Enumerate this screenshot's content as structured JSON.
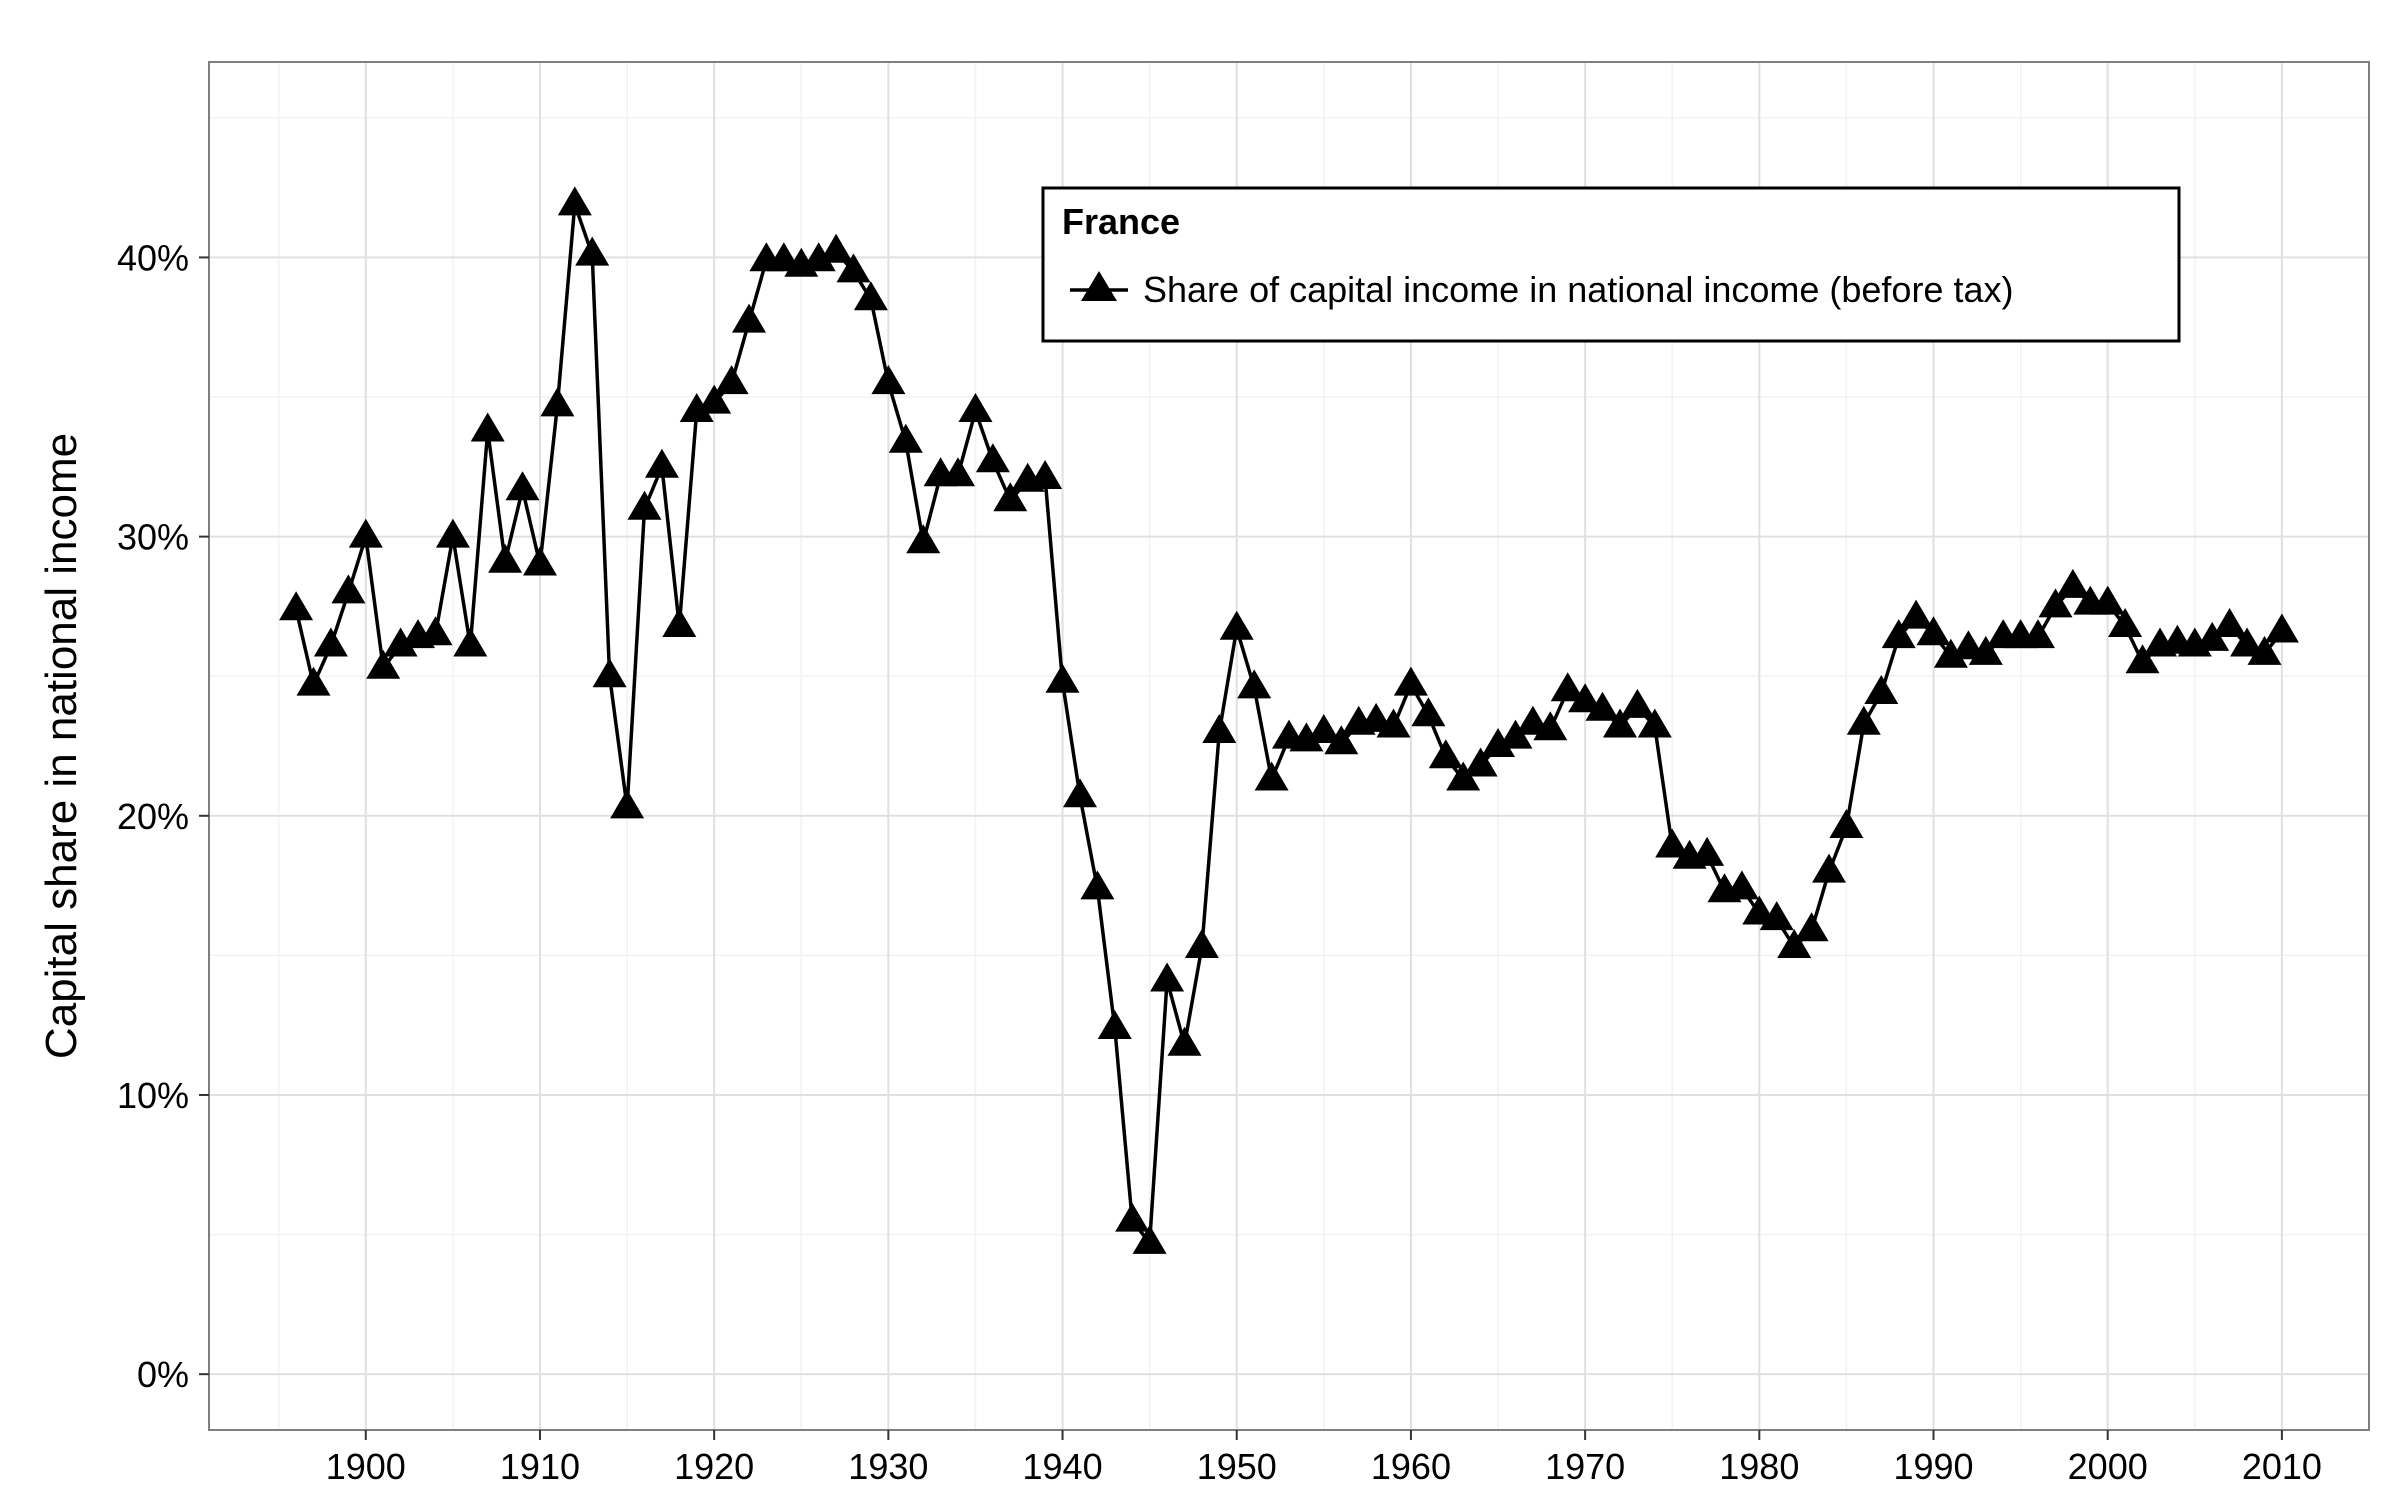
{
  "chart_data": {
    "type": "line",
    "title": "",
    "xlabel": "",
    "ylabel": "Capital share in national income",
    "xlim": [
      1891,
      2015
    ],
    "ylim": [
      -0.02,
      0.47
    ],
    "x_ticks": [
      1900,
      1910,
      1920,
      1930,
      1940,
      1950,
      1960,
      1970,
      1980,
      1990,
      2000,
      2010
    ],
    "x_tick_labels": [
      "1900",
      "1910",
      "1920",
      "1930",
      "1940",
      "1950",
      "1960",
      "1970",
      "1980",
      "1990",
      "2000",
      "2010"
    ],
    "y_ticks": [
      0,
      0.1,
      0.2,
      0.3,
      0.4
    ],
    "y_tick_labels": [
      "0%",
      "10%",
      "20%",
      "30%",
      "40%"
    ],
    "grid": true,
    "legend": {
      "title": "France",
      "placement": "top-right",
      "entries": [
        "Share of capital income in national income (before tax)"
      ]
    },
    "series": [
      {
        "name": "Share of capital income in national income (before tax)",
        "marker": "triangle",
        "color": "#000000",
        "x": [
          1896,
          1897,
          1898,
          1899,
          1900,
          1901,
          1902,
          1903,
          1904,
          1905,
          1906,
          1907,
          1908,
          1909,
          1910,
          1911,
          1912,
          1913,
          1914,
          1915,
          1916,
          1917,
          1918,
          1919,
          1920,
          1921,
          1922,
          1923,
          1924,
          1925,
          1926,
          1927,
          1928,
          1929,
          1930,
          1931,
          1932,
          1933,
          1934,
          1935,
          1936,
          1937,
          1938,
          1939,
          1940,
          1941,
          1942,
          1943,
          1944,
          1945,
          1946,
          1947,
          1948,
          1949,
          1950,
          1951,
          1952,
          1953,
          1954,
          1955,
          1956,
          1957,
          1958,
          1959,
          1960,
          1961,
          1962,
          1963,
          1964,
          1965,
          1966,
          1967,
          1968,
          1969,
          1970,
          1971,
          1972,
          1973,
          1974,
          1975,
          1976,
          1977,
          1978,
          1979,
          1980,
          1981,
          1982,
          1983,
          1984,
          1985,
          1986,
          1987,
          1988,
          1989,
          1990,
          1991,
          1992,
          1993,
          1994,
          1995,
          1996,
          1997,
          1998,
          1999,
          2000,
          2001,
          2002,
          2003,
          2004,
          2005,
          2006,
          2007,
          2008,
          2009,
          2010
        ],
        "values": [
          0.274,
          0.247,
          0.261,
          0.28,
          0.3,
          0.253,
          0.261,
          0.264,
          0.265,
          0.3,
          0.261,
          0.338,
          0.291,
          0.317,
          0.29,
          0.347,
          0.419,
          0.401,
          0.25,
          0.203,
          0.31,
          0.325,
          0.268,
          0.345,
          0.348,
          0.355,
          0.377,
          0.399,
          0.399,
          0.397,
          0.399,
          0.402,
          0.395,
          0.385,
          0.355,
          0.334,
          0.298,
          0.322,
          0.322,
          0.345,
          0.327,
          0.313,
          0.32,
          0.321,
          0.248,
          0.207,
          0.174,
          0.124,
          0.055,
          0.047,
          0.141,
          0.118,
          0.153,
          0.23,
          0.267,
          0.246,
          0.213,
          0.228,
          0.227,
          0.23,
          0.226,
          0.233,
          0.234,
          0.232,
          0.247,
          0.236,
          0.221,
          0.213,
          0.218,
          0.225,
          0.228,
          0.233,
          0.231,
          0.245,
          0.241,
          0.238,
          0.232,
          0.239,
          0.232,
          0.189,
          0.185,
          0.186,
          0.173,
          0.174,
          0.165,
          0.163,
          0.153,
          0.159,
          0.18,
          0.196,
          0.233,
          0.244,
          0.264,
          0.271,
          0.265,
          0.257,
          0.26,
          0.258,
          0.264,
          0.264,
          0.264,
          0.275,
          0.282,
          0.276,
          0.276,
          0.268,
          0.255,
          0.261,
          0.262,
          0.261,
          0.263,
          0.268,
          0.261,
          0.258,
          0.266
        ]
      }
    ]
  }
}
